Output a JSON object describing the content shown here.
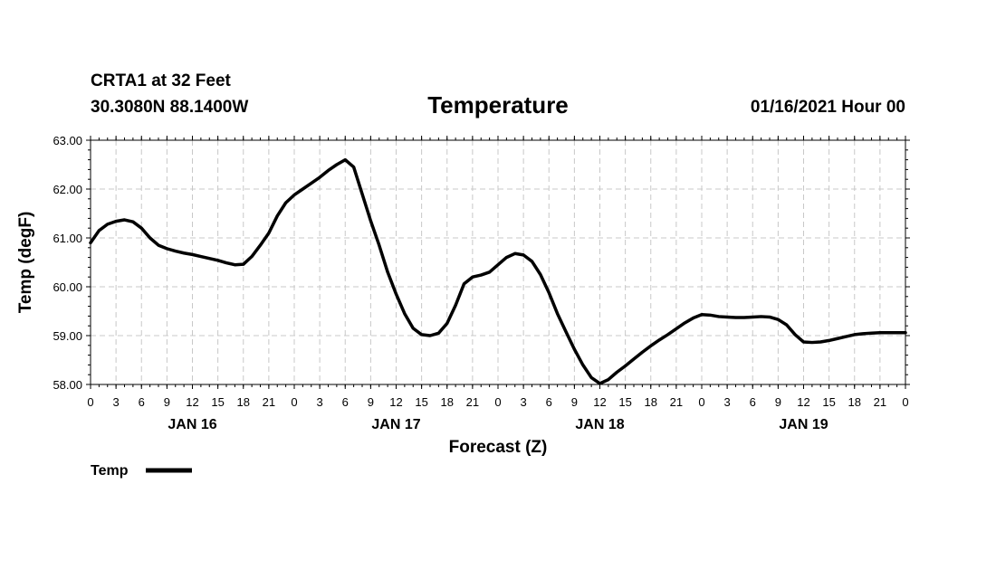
{
  "header": {
    "station": "CRTA1 at 32 Feet",
    "location": "30.3080N 88.1400W",
    "title": "Temperature",
    "issued": "01/16/2021 Hour 00"
  },
  "chart_data": {
    "type": "line",
    "title": "Temperature",
    "xlabel": "Forecast (Z)",
    "ylabel": "Temp (degF)",
    "ylim": [
      58.0,
      63.0
    ],
    "yticks": [
      "58.00",
      "59.00",
      "60.00",
      "61.00",
      "62.00",
      "63.00"
    ],
    "xlim_hours": [
      0,
      96
    ],
    "xtick_labels": [
      "0",
      "3",
      "6",
      "9",
      "12",
      "15",
      "18",
      "21",
      "0",
      "3",
      "6",
      "9",
      "12",
      "15",
      "18",
      "21",
      "0",
      "3",
      "6",
      "9",
      "12",
      "15",
      "18",
      "21",
      "0",
      "3",
      "6",
      "9",
      "12",
      "15",
      "18",
      "21",
      "0"
    ],
    "date_labels": [
      {
        "label": "JAN 16",
        "hour": 12
      },
      {
        "label": "JAN 17",
        "hour": 36
      },
      {
        "label": "JAN 18",
        "hour": 60
      },
      {
        "label": "JAN 19",
        "hour": 84
      }
    ],
    "grid": true,
    "series": [
      {
        "name": "Temp",
        "color": "#000000",
        "points": [
          [
            0,
            60.9
          ],
          [
            1,
            61.15
          ],
          [
            2,
            61.28
          ],
          [
            3,
            61.34
          ],
          [
            4,
            61.37
          ],
          [
            5,
            61.33
          ],
          [
            6,
            61.2
          ],
          [
            7,
            61.0
          ],
          [
            8,
            60.85
          ],
          [
            9,
            60.78
          ],
          [
            10,
            60.73
          ],
          [
            11,
            60.69
          ],
          [
            12,
            60.66
          ],
          [
            13,
            60.62
          ],
          [
            14,
            60.58
          ],
          [
            15,
            60.54
          ],
          [
            16,
            60.49
          ],
          [
            17,
            60.45
          ],
          [
            18,
            60.46
          ],
          [
            19,
            60.62
          ],
          [
            20,
            60.85
          ],
          [
            21,
            61.1
          ],
          [
            22,
            61.45
          ],
          [
            23,
            61.72
          ],
          [
            24,
            61.88
          ],
          [
            25,
            62.0
          ],
          [
            26,
            62.12
          ],
          [
            27,
            62.24
          ],
          [
            28,
            62.38
          ],
          [
            29,
            62.5
          ],
          [
            30,
            62.6
          ],
          [
            31,
            62.45
          ],
          [
            32,
            61.9
          ],
          [
            33,
            61.35
          ],
          [
            34,
            60.85
          ],
          [
            35,
            60.3
          ],
          [
            36,
            59.85
          ],
          [
            37,
            59.45
          ],
          [
            38,
            59.15
          ],
          [
            39,
            59.02
          ],
          [
            40,
            59.0
          ],
          [
            41,
            59.05
          ],
          [
            42,
            59.25
          ],
          [
            43,
            59.62
          ],
          [
            44,
            60.06
          ],
          [
            45,
            60.2
          ],
          [
            46,
            60.24
          ],
          [
            47,
            60.3
          ],
          [
            48,
            60.45
          ],
          [
            49,
            60.6
          ],
          [
            50,
            60.68
          ],
          [
            51,
            60.65
          ],
          [
            52,
            60.52
          ],
          [
            53,
            60.25
          ],
          [
            54,
            59.88
          ],
          [
            55,
            59.45
          ],
          [
            56,
            59.08
          ],
          [
            57,
            58.72
          ],
          [
            58,
            58.4
          ],
          [
            59,
            58.14
          ],
          [
            60,
            58.02
          ],
          [
            61,
            58.1
          ],
          [
            62,
            58.25
          ],
          [
            63,
            58.38
          ],
          [
            64,
            58.52
          ],
          [
            65,
            58.66
          ],
          [
            66,
            58.79
          ],
          [
            67,
            58.91
          ],
          [
            68,
            59.02
          ],
          [
            69,
            59.14
          ],
          [
            70,
            59.26
          ],
          [
            71,
            59.36
          ],
          [
            72,
            59.43
          ],
          [
            73,
            59.42
          ],
          [
            74,
            59.39
          ],
          [
            75,
            59.38
          ],
          [
            76,
            59.37
          ],
          [
            77,
            59.37
          ],
          [
            78,
            59.38
          ],
          [
            79,
            59.39
          ],
          [
            80,
            59.38
          ],
          [
            81,
            59.33
          ],
          [
            82,
            59.22
          ],
          [
            83,
            59.02
          ],
          [
            84,
            58.87
          ],
          [
            85,
            58.86
          ],
          [
            86,
            58.87
          ],
          [
            87,
            58.9
          ],
          [
            88,
            58.94
          ],
          [
            89,
            58.98
          ],
          [
            90,
            59.02
          ],
          [
            91,
            59.04
          ],
          [
            92,
            59.05
          ],
          [
            93,
            59.06
          ],
          [
            94,
            59.06
          ],
          [
            95,
            59.06
          ],
          [
            96,
            59.06
          ]
        ]
      }
    ],
    "legend": {
      "label": "Temp",
      "placement": "bottom-left"
    }
  }
}
